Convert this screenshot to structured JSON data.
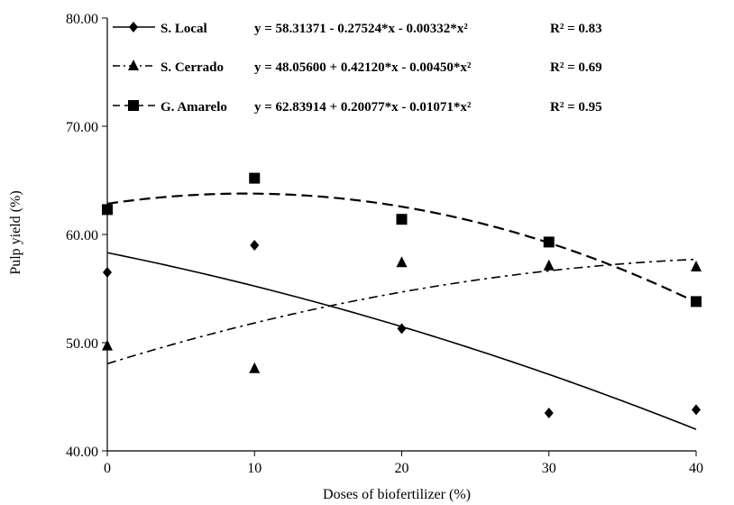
{
  "chart_data": {
    "type": "scatter",
    "xlabel": "Doses of biofertilizer (%)",
    "ylabel": "Pulp yield (%)",
    "xlim": [
      0,
      40
    ],
    "ylim": [
      40,
      80
    ],
    "x_ticks": [
      0,
      10,
      20,
      30,
      40
    ],
    "y_ticks": [
      40,
      50,
      60,
      70,
      80
    ],
    "x_tick_labels": [
      "0",
      "10",
      "20",
      "30",
      "40"
    ],
    "y_tick_labels": [
      "40.00",
      "50.00",
      "60.00",
      "70.00",
      "80.00"
    ],
    "grid": false,
    "legend_position": "top",
    "x": [
      0,
      10,
      20,
      30,
      40
    ],
    "series": [
      {
        "name": "S. Local",
        "marker": "diamond",
        "line_style": "solid",
        "values": [
          56.5,
          59.0,
          51.3,
          43.5,
          43.8
        ],
        "fit": [
          58.31371,
          -0.27524,
          -0.00332
        ],
        "equation": "y = 58.31371 - 0.27524*x - 0.00332*x²",
        "r2": "R² = 0.83"
      },
      {
        "name": "S. Cerrado",
        "marker": "triangle",
        "line_style": "dashdot",
        "values": [
          49.7,
          47.6,
          57.4,
          57.1,
          57.0
        ],
        "fit": [
          48.056,
          0.4212,
          -0.0045
        ],
        "equation": "y = 48.05600 + 0.42120*x - 0.00450*x²",
        "r2": "R² = 0.69"
      },
      {
        "name": "G. Amarelo",
        "marker": "square",
        "line_style": "dashed",
        "values": [
          62.3,
          65.2,
          61.4,
          59.3,
          53.8
        ],
        "fit": [
          62.83914,
          0.20077,
          -0.01071
        ],
        "equation": "y = 62.83914 + 0.20077*x - 0.01071*x²",
        "r2": "R² = 0.95"
      }
    ]
  }
}
